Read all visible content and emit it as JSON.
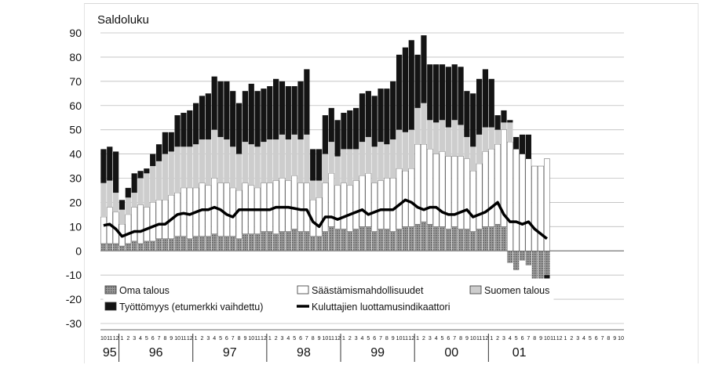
{
  "chart_data": {
    "type": "bar",
    "title": "Saldoluku",
    "ylim": [
      -30,
      90
    ],
    "yticks": [
      90,
      80,
      70,
      60,
      50,
      40,
      30,
      20,
      10,
      0,
      -10,
      -20,
      -30
    ],
    "grid": true,
    "legend_position": "bottom-inside",
    "month_labels": [
      "10",
      "11",
      "12",
      "1",
      "2",
      "3",
      "4",
      "5",
      "6",
      "7",
      "8",
      "9",
      "10",
      "11",
      "12",
      "1",
      "2",
      "3",
      "4",
      "5",
      "6",
      "7",
      "8",
      "9",
      "10",
      "11",
      "12",
      "1",
      "2",
      "3",
      "4",
      "5",
      "6",
      "7",
      "8",
      "9",
      "10",
      "11",
      "12",
      "1",
      "2",
      "3",
      "4",
      "5",
      "6",
      "7",
      "8",
      "9",
      "10",
      "11",
      "12",
      "1",
      "2",
      "3",
      "4",
      "5",
      "6",
      "7",
      "8",
      "9",
      "10",
      "11",
      "12",
      "1",
      "2",
      "3",
      "4",
      "5",
      "6",
      "7",
      "8",
      "9",
      "10",
      "11",
      "12",
      "1",
      "2",
      "3",
      "4",
      "5",
      "6",
      "7",
      "8",
      "9",
      "10"
    ],
    "years": [
      {
        "label": "95",
        "start": 0,
        "count": 3
      },
      {
        "label": "96",
        "start": 3,
        "count": 12
      },
      {
        "label": "97",
        "start": 15,
        "count": 12
      },
      {
        "label": "98",
        "start": 27,
        "count": 12
      },
      {
        "label": "99",
        "start": 39,
        "count": 12
      },
      {
        "label": "00",
        "start": 51,
        "count": 12
      },
      {
        "label": "01",
        "start": 63,
        "count": 10
      }
    ],
    "series": [
      {
        "name": "Oma talous",
        "color": "#7a7a7a",
        "pattern": "dots",
        "values": [
          3,
          3,
          3,
          2,
          3,
          4,
          3,
          4,
          4,
          5,
          5,
          5,
          6,
          6,
          5,
          6,
          6,
          6,
          7,
          6,
          6,
          6,
          5,
          7,
          7,
          7,
          8,
          8,
          7,
          8,
          8,
          9,
          8,
          8,
          6,
          6,
          8,
          10,
          9,
          9,
          8,
          9,
          10,
          10,
          8,
          9,
          9,
          8,
          9,
          10,
          10,
          11,
          12,
          11,
          10,
          10,
          9,
          10,
          9,
          9,
          8,
          9,
          10,
          10,
          11,
          10,
          -5,
          -8,
          -4,
          -6,
          -13,
          -12,
          -10
        ]
      },
      {
        "name": "Säästämismahdollisuudet",
        "color": "#ffffff",
        "values": [
          11,
          15,
          13,
          9,
          12,
          14,
          16,
          14,
          16,
          16,
          16,
          18,
          18,
          20,
          21,
          20,
          22,
          21,
          23,
          22,
          22,
          20,
          20,
          21,
          20,
          19,
          20,
          20,
          22,
          22,
          21,
          22,
          20,
          20,
          15,
          16,
          20,
          22,
          18,
          19,
          19,
          20,
          21,
          22,
          20,
          20,
          21,
          22,
          25,
          23,
          24,
          33,
          32,
          31,
          30,
          31,
          30,
          29,
          30,
          29,
          25,
          27,
          31,
          32,
          33,
          40,
          45,
          42,
          40,
          38,
          35,
          35,
          38
        ]
      },
      {
        "name": "Suomen talous",
        "color": "#cdcdcd",
        "values": [
          14,
          11,
          8,
          6,
          7,
          6,
          11,
          14,
          15,
          16,
          19,
          18,
          19,
          17,
          17,
          18,
          18,
          19,
          20,
          19,
          18,
          17,
          15,
          17,
          17,
          17,
          17,
          18,
          17,
          18,
          17,
          17,
          18,
          20,
          8,
          7,
          12,
          13,
          12,
          14,
          15,
          13,
          14,
          15,
          15,
          16,
          14,
          16,
          16,
          16,
          16,
          15,
          17,
          12,
          13,
          13,
          12,
          15,
          13,
          9,
          10,
          12,
          10,
          9,
          6,
          3,
          8,
          0,
          0,
          0,
          0,
          0,
          0
        ]
      },
      {
        "name": "Työttömyys (etumerkki vaihdettu)",
        "color": "#141414",
        "values": [
          14,
          14,
          17,
          4,
          4,
          8,
          3,
          2,
          5,
          7,
          9,
          8,
          13,
          14,
          15,
          17,
          18,
          19,
          22,
          23,
          24,
          23,
          21,
          21,
          25,
          23,
          22,
          22,
          25,
          22,
          22,
          20,
          24,
          27,
          13,
          13,
          16,
          14,
          15,
          15,
          16,
          17,
          20,
          19,
          21,
          22,
          23,
          24,
          31,
          35,
          37,
          22,
          28,
          23,
          24,
          23,
          25,
          23,
          24,
          19,
          22,
          23,
          24,
          20,
          6,
          5,
          1,
          5,
          8,
          10,
          -11,
          -15,
          -15
        ]
      },
      {
        "name": "Kuluttajien luottamusindikaattori",
        "type": "line",
        "color": "#000000",
        "values": [
          10.5,
          11,
          9,
          6,
          7,
          8,
          8,
          9,
          10,
          11,
          11,
          13,
          15,
          15.5,
          15,
          16,
          17,
          17,
          18,
          17,
          15,
          14,
          17,
          17,
          17,
          17,
          17,
          17,
          18,
          18,
          18,
          17.5,
          17,
          17,
          12,
          10,
          14,
          14,
          13,
          14,
          15,
          16,
          17,
          15,
          16,
          17,
          17,
          17,
          19,
          21,
          20,
          18,
          17,
          18,
          18,
          16,
          15,
          15,
          16,
          17,
          14,
          15,
          16,
          18,
          20,
          15,
          12,
          12,
          11,
          12,
          9,
          7,
          5
        ]
      }
    ]
  }
}
